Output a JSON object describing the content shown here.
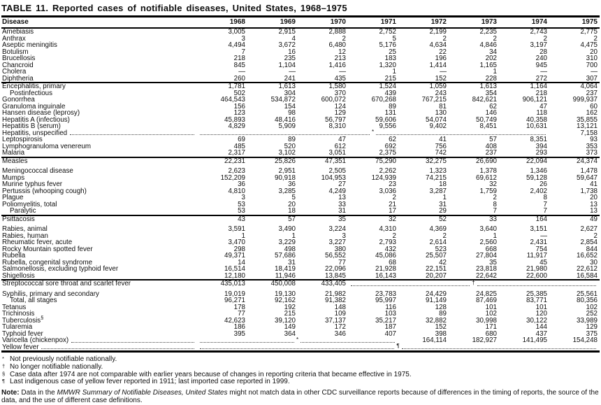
{
  "title": "TABLE 11. Reported cases of notifiable diseases, United States, 1968–1975",
  "header": {
    "disease": "Disease",
    "years": [
      "1968",
      "1969",
      "1970",
      "1971",
      "1972",
      "1973",
      "1974",
      "1975"
    ]
  },
  "groups": [
    {
      "rows": [
        {
          "label": "Amebiasis",
          "cells": [
            "3,005",
            "2,915",
            "2,888",
            "2,752",
            "2,199",
            "2,235",
            "2,743",
            "2,775"
          ]
        },
        {
          "label": "Anthrax",
          "cells": [
            "3",
            "4",
            "2",
            "5",
            "2",
            "2",
            "2",
            "2"
          ]
        },
        {
          "label": "Aseptic meningitis",
          "cells": [
            "4,494",
            "3,672",
            "6,480",
            "5,176",
            "4,634",
            "4,846",
            "3,197",
            "4,475"
          ]
        },
        {
          "label": "Botulism",
          "cells": [
            "7",
            "16",
            "12",
            "25",
            "22",
            "34",
            "28",
            "20"
          ]
        },
        {
          "label": "Brucellosis",
          "cells": [
            "218",
            "235",
            "213",
            "183",
            "196",
            "202",
            "240",
            "310"
          ]
        },
        {
          "label": "Chancroid",
          "cells": [
            "845",
            "1,104",
            "1,416",
            "1,320",
            "1,414",
            "1,165",
            "945",
            "700"
          ]
        },
        {
          "label": "Cholera",
          "cells": [
            "—",
            "—",
            "—",
            "1",
            "—",
            "1",
            "—",
            "—"
          ]
        },
        {
          "label": "Diphtheria",
          "cells": [
            "260",
            "241",
            "435",
            "215",
            "152",
            "228",
            "272",
            "307"
          ]
        }
      ]
    },
    {
      "rows": [
        {
          "label": "Encephalitis, primary",
          "cells": [
            "1,781",
            "1,613",
            "1,580",
            "1,524",
            "1,059",
            "1,613",
            "1,164",
            "4,064"
          ]
        },
        {
          "label": "Postinfectious",
          "indent": true,
          "cells": [
            "502",
            "304",
            "370",
            "439",
            "243",
            "354",
            "218",
            "237"
          ]
        },
        {
          "label": "Gonorrhea",
          "cells": [
            "464,543",
            "534,872",
            "600,072",
            "670,268",
            "767,215",
            "842,621",
            "906,121",
            "999,937"
          ]
        },
        {
          "label": "Granuloma inguinale",
          "cells": [
            "156",
            "154",
            "124",
            "89",
            "81",
            "62",
            "47",
            "60"
          ]
        },
        {
          "label": "Hansen disease (leprosy)",
          "cells": [
            "123",
            "98",
            "129",
            "131",
            "130",
            "146",
            "118",
            "162"
          ]
        },
        {
          "label": "Hepatitis A (infectious)",
          "cells": [
            "45,893",
            "48,416",
            "56,797",
            "59,606",
            "54,074",
            "50,749",
            "40,358",
            "35,855"
          ]
        },
        {
          "label": "Hepatitis B (serum)",
          "cells": [
            "4,829",
            "5,909",
            "8,310",
            "9,556",
            "9,402",
            "8,451",
            "10,631",
            "13,121"
          ]
        },
        {
          "label": "Hepatitis, unspecified",
          "dots_after_label": true,
          "cells": [
            {
              "span": 7,
              "symbol": "*"
            },
            "7,158"
          ]
        },
        {
          "label": "Leptospirosis",
          "cells": [
            "69",
            "89",
            "47",
            "62",
            "41",
            "57",
            "8,351",
            "93"
          ]
        },
        {
          "label": "Lymphogranuloma venereum",
          "cells": [
            "485",
            "520",
            "612",
            "692",
            "756",
            "408",
            "394",
            "353"
          ]
        },
        {
          "label": "Malaria",
          "cells": [
            "2,317",
            "3,102",
            "3,051",
            "2,375",
            "742",
            "237",
            "293",
            "373"
          ]
        }
      ]
    },
    {
      "rows": [
        {
          "label": "Measles",
          "gap_after": true,
          "cells": [
            "22,231",
            "25,826",
            "47,351",
            "75,290",
            "32,275",
            "26,690",
            "22,094",
            "24,374"
          ]
        },
        {
          "label": "Meningococcal disease",
          "cells": [
            "2,623",
            "2,951",
            "2,505",
            "2,262",
            "1,323",
            "1,378",
            "1,346",
            "1,478"
          ]
        },
        {
          "label": "Mumps",
          "cells": [
            "152,209",
            "90,918",
            "104,953",
            "124,939",
            "74,215",
            "69,612",
            "59,128",
            "59,647"
          ]
        },
        {
          "label": "Murine typhus fever",
          "cells": [
            "36",
            "36",
            "27",
            "23",
            "18",
            "32",
            "26",
            "41"
          ]
        },
        {
          "label": "Pertussis (whooping cough)",
          "cells": [
            "4,810",
            "3,285",
            "4,249",
            "3,036",
            "3,287",
            "1,759",
            "2,402",
            "1,738"
          ]
        },
        {
          "label": "Plague",
          "cells": [
            "3",
            "5",
            "13",
            "2",
            "1",
            "2",
            "8",
            "20"
          ]
        },
        {
          "label": "Poliomyelitis, total",
          "cells": [
            "53",
            "20",
            "33",
            "21",
            "31",
            "8",
            "7",
            "13"
          ]
        },
        {
          "label": "Paralytic",
          "indent": true,
          "cells": [
            "53",
            "18",
            "31",
            "17",
            "29",
            "7",
            "7",
            "13"
          ]
        }
      ]
    },
    {
      "rows": [
        {
          "label": "Psittacosis",
          "gap_after": true,
          "cells": [
            "43",
            "57",
            "35",
            "32",
            "52",
            "33",
            "164",
            "49"
          ]
        },
        {
          "label": "Rabies, animal",
          "cells": [
            "3,591",
            "3,490",
            "3,224",
            "4,310",
            "4,369",
            "3,640",
            "3,151",
            "2,627"
          ]
        },
        {
          "label": "Rabies, human",
          "cells": [
            "1",
            "1",
            "3",
            "2",
            "2",
            "1",
            "—",
            "2"
          ]
        },
        {
          "label": "Rheumatic fever, acute",
          "cells": [
            "3,470",
            "3,229",
            "3,227",
            "2,793",
            "2,614",
            "2,560",
            "2,431",
            "2,854"
          ]
        },
        {
          "label": "Rocky Mountain spotted fever",
          "cells": [
            "298",
            "498",
            "380",
            "432",
            "523",
            "668",
            "754",
            "844"
          ]
        },
        {
          "label": "Rubella",
          "cells": [
            "49,371",
            "57,686",
            "56,552",
            "45,086",
            "25,507",
            "27,804",
            "11,917",
            "16,652"
          ]
        },
        {
          "label": "Rubella, congenital syndrome",
          "cells": [
            "14",
            "31",
            "77",
            "68",
            "42",
            "35",
            "45",
            "30"
          ]
        },
        {
          "label": "Salmonellosis, excluding typhoid fever",
          "cells": [
            "16,514",
            "18,419",
            "22,096",
            "21,928",
            "22,151",
            "23,818",
            "21,980",
            "22,612"
          ]
        },
        {
          "label": "Shigellosis",
          "cells": [
            "12,180",
            "11,946",
            "13,845",
            "16,143",
            "20,207",
            "22,642",
            "22,600",
            "16,584"
          ]
        }
      ]
    },
    {
      "rows": [
        {
          "label": "Streptococcal sore throat and scarlet fever",
          "gap_after": true,
          "cells": [
            "435,013",
            "450,008",
            "433,405",
            {
              "span": 5,
              "symbol": "†"
            }
          ]
        },
        {
          "label": "Syphilis, primary and secondary",
          "cells": [
            "19,019",
            "19,130",
            "21,982",
            "23,783",
            "24,429",
            "24,825",
            "25,385",
            "25,561"
          ]
        },
        {
          "label": "Total, all stages",
          "indent": true,
          "cells": [
            "96,271",
            "92,162",
            "91,382",
            "95,997",
            "91,149",
            "87,469",
            "83,771",
            "80,356"
          ]
        },
        {
          "label": "Tetanus",
          "cells": [
            "178",
            "192",
            "148",
            "116",
            "128",
            "101",
            "101",
            "102"
          ]
        },
        {
          "label": "Trichinosis",
          "cells": [
            "77",
            "215",
            "109",
            "103",
            "89",
            "102",
            "120",
            "252"
          ]
        },
        {
          "label": "Tuberculosis",
          "sup": "§",
          "cells": [
            "42,623",
            "39,120",
            "37,137",
            "35,217",
            "32,882",
            "30,998",
            "30,122",
            "33,989"
          ]
        },
        {
          "label": "Tularemia",
          "cells": [
            "186",
            "149",
            "172",
            "187",
            "152",
            "171",
            "144",
            "129"
          ]
        },
        {
          "label": "Typhoid fever",
          "cells": [
            "395",
            "364",
            "346",
            "407",
            "398",
            "680",
            "437",
            "375"
          ]
        },
        {
          "label": "Varicella (chickenpox)",
          "dots_after_label": true,
          "cells": [
            {
              "span": 4,
              "symbol": "*"
            },
            "164,114",
            "182,927",
            "141,495",
            "154,248"
          ]
        },
        {
          "label": "Yellow fever",
          "dots_after_label": true,
          "cells": [
            {
              "span": 8,
              "symbol": "¶"
            }
          ]
        }
      ]
    }
  ],
  "footnotes": [
    {
      "symbol": "*",
      "text": "Not previously notifiable nationally."
    },
    {
      "symbol": "†",
      "text": "No longer notifiable nationally."
    },
    {
      "symbol": "§",
      "text": "Case data after 1974 are not comparable with earlier years because of changes in reporting criteria that became effective in 1975."
    },
    {
      "symbol": "¶",
      "text": "Last indigenous case of yellow fever reported in 1911; last imported case reported in 1999."
    }
  ],
  "note": {
    "label": "Note:",
    "pre": "Data in the",
    "italic": "MMWR Summary of Notifiable Diseases, United States",
    "post": "might not match data in other CDC surveillance reports because of differences in the timing of reports, the source of the data, and the use of different case definitions."
  }
}
